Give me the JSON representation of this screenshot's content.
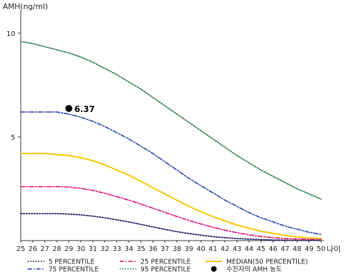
{
  "chart_data": {
    "type": "line",
    "ylabel": "AMH(ng/ml)",
    "xlabel": "나이",
    "x": [
      25,
      26,
      27,
      28,
      29,
      30,
      31,
      32,
      33,
      34,
      35,
      36,
      37,
      38,
      39,
      40,
      41,
      42,
      43,
      44,
      45,
      46,
      47,
      48,
      49,
      50
    ],
    "xlim": [
      25,
      50
    ],
    "ylim": [
      0,
      11
    ],
    "yticks": [
      5,
      10
    ],
    "grid": false,
    "legend_position": "bottom",
    "series": [
      {
        "name": "95 PERCENTILE",
        "color": "#2e7d4f",
        "dash": "dotted",
        "values": [
          9.6,
          9.5,
          9.35,
          9.2,
          9.05,
          8.85,
          8.6,
          8.3,
          8.0,
          7.65,
          7.3,
          6.9,
          6.5,
          6.1,
          5.7,
          5.3,
          4.9,
          4.5,
          4.1,
          3.75,
          3.4,
          3.1,
          2.8,
          2.5,
          2.25,
          2.0
        ]
      },
      {
        "name": "75 PERCENTILE",
        "color": "#3a4fb5",
        "dash": "dash-dot",
        "values": [
          6.2,
          6.2,
          6.2,
          6.2,
          6.1,
          5.95,
          5.75,
          5.5,
          5.2,
          4.9,
          4.55,
          4.2,
          3.8,
          3.4,
          3.0,
          2.65,
          2.3,
          1.95,
          1.65,
          1.35,
          1.1,
          0.9,
          0.7,
          0.55,
          0.4,
          0.3
        ]
      },
      {
        "name": "MEDIAN(50 PERCENTILE)",
        "color": "#f2c500",
        "dash": "solid",
        "values": [
          4.2,
          4.2,
          4.2,
          4.15,
          4.1,
          4.0,
          3.85,
          3.65,
          3.4,
          3.15,
          2.85,
          2.55,
          2.25,
          1.95,
          1.65,
          1.4,
          1.15,
          0.95,
          0.75,
          0.6,
          0.45,
          0.35,
          0.25,
          0.18,
          0.13,
          0.1
        ]
      },
      {
        "name": "25 PERCENTILE",
        "color": "#e0207a",
        "dash": "dash-dot",
        "values": [
          2.6,
          2.6,
          2.6,
          2.6,
          2.58,
          2.52,
          2.42,
          2.28,
          2.12,
          1.95,
          1.76,
          1.56,
          1.36,
          1.16,
          0.97,
          0.8,
          0.64,
          0.5,
          0.38,
          0.28,
          0.2,
          0.14,
          0.1,
          0.08,
          0.06,
          0.05
        ]
      },
      {
        "name": "5 PERCENTILE",
        "color": "#1a1a5c",
        "dash": "dotted",
        "values": [
          1.3,
          1.3,
          1.3,
          1.3,
          1.28,
          1.24,
          1.18,
          1.1,
          1.0,
          0.9,
          0.78,
          0.66,
          0.54,
          0.43,
          0.34,
          0.26,
          0.19,
          0.14,
          0.1,
          0.07,
          0.05,
          0.03,
          0.02,
          0.015,
          0.01,
          0.01
        ]
      }
    ],
    "marker": {
      "name": "수진자의 AMH 농도",
      "x": 29,
      "y": 6.37,
      "label": "6.37",
      "color": "#000000"
    }
  }
}
